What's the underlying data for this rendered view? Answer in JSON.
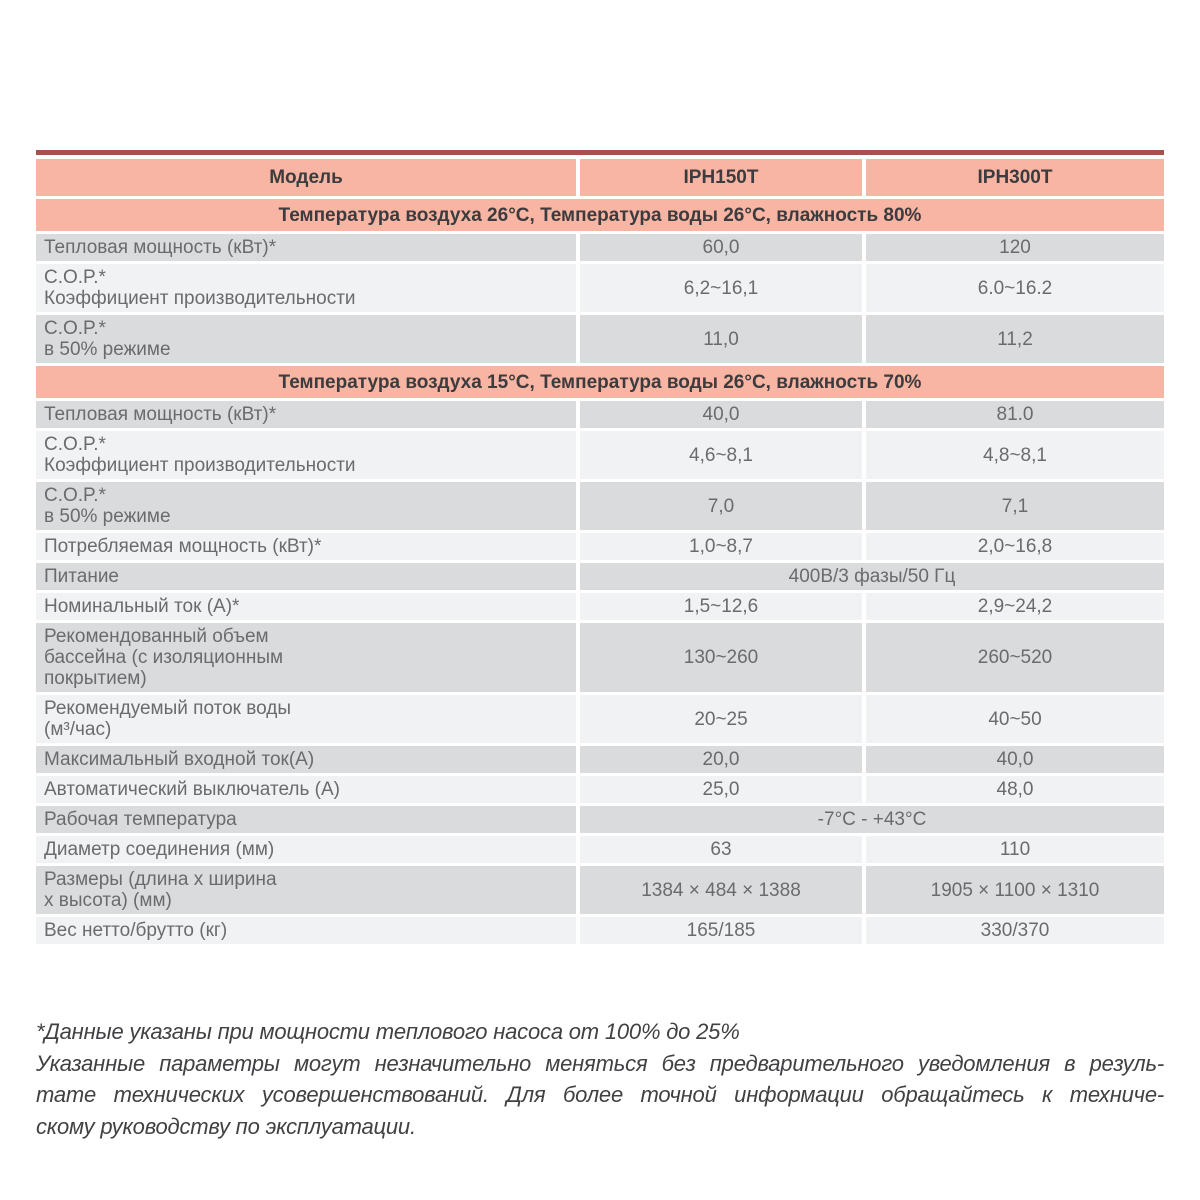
{
  "colors": {
    "accent_line": "#A8504B",
    "section_header_bg": "#F8B5A3",
    "row_gray": "#D9DBDC",
    "row_light": "#F1F2F3",
    "header_text": "#3C3C3E",
    "body_text": "#6A6B6E"
  },
  "table": {
    "header": {
      "model": "Модель",
      "col1": "IPH150T",
      "col2": "IPH300T"
    },
    "rows": [
      {
        "type": "section",
        "title": "Температура воздуха 26°С, Температура воды 26°С, влажность 80%"
      },
      {
        "type": "data",
        "label": "Тепловая мощность (кВт)*",
        "v1": "60,0",
        "v2": "120"
      },
      {
        "type": "data",
        "label": "C.O.P.*\nКоэффициент производительности",
        "v1": "6,2~16,1",
        "v2": "6.0~16.2"
      },
      {
        "type": "data",
        "label": "C.O.P.*\nв 50% режиме",
        "v1": "11,0",
        "v2": "11,2"
      },
      {
        "type": "section",
        "title": "Температура воздуха 15°С, Температура воды 26°С, влажность 70%"
      },
      {
        "type": "data",
        "label": "Тепловая мощность (кВт)*",
        "v1": "40,0",
        "v2": "81.0"
      },
      {
        "type": "data",
        "label": "C.O.P.*\nКоэффициент производительности",
        "v1": "4,6~8,1",
        "v2": "4,8~8,1"
      },
      {
        "type": "data",
        "label": "C.O.P.*\nв 50% режиме",
        "v1": "7,0",
        "v2": "7,1"
      },
      {
        "type": "data",
        "label": "Потребляемая мощность (кВт)*",
        "v1": "1,0~8,7",
        "v2": "2,0~16,8"
      },
      {
        "type": "span",
        "label": "Питание",
        "value": "400В/3 фазы/50 Гц"
      },
      {
        "type": "data",
        "label": "Номинальный ток (А)*",
        "v1": "1,5~12,6",
        "v2": "2,9~24,2"
      },
      {
        "type": "data",
        "label": "Рекомендованный объем\nбассейна (с изоляционным\nпокрытием)",
        "v1": "130~260",
        "v2": "260~520"
      },
      {
        "type": "data",
        "label": "Рекомендуемый поток воды\n(м³/час)",
        "v1": "20~25",
        "v2": "40~50"
      },
      {
        "type": "data",
        "label": "Максимальный входной ток(А)",
        "v1": "20,0",
        "v2": "40,0"
      },
      {
        "type": "data",
        "label": "Автоматический выключатель (А)",
        "v1": "25,0",
        "v2": "48,0"
      },
      {
        "type": "span",
        "label": "Рабочая температура",
        "value": "-7°С  - +43°С"
      },
      {
        "type": "data",
        "label": "Диаметр соединения (мм)",
        "v1": "63",
        "v2": "110"
      },
      {
        "type": "data",
        "label": "Размеры (длина x ширина\nх высота) (мм)",
        "v1": "1384 × 484 × 1388",
        "v2": "1905 × 1100 × 1310"
      },
      {
        "type": "data",
        "label": "Вес нетто/брутто (кг)",
        "v1": "165/185",
        "v2": "330/370"
      }
    ]
  },
  "footnote": {
    "lines": [
      "*Данные указаны при мощности теплового насоса от 100% до 25%",
      "Указанные параметры могут незначительно меняться без предварительного уведомления в резуль-",
      "тате технических усовершенствований. Для более точной информации обращайтесь к техниче-",
      "скому руководству по эксплуатации."
    ]
  }
}
